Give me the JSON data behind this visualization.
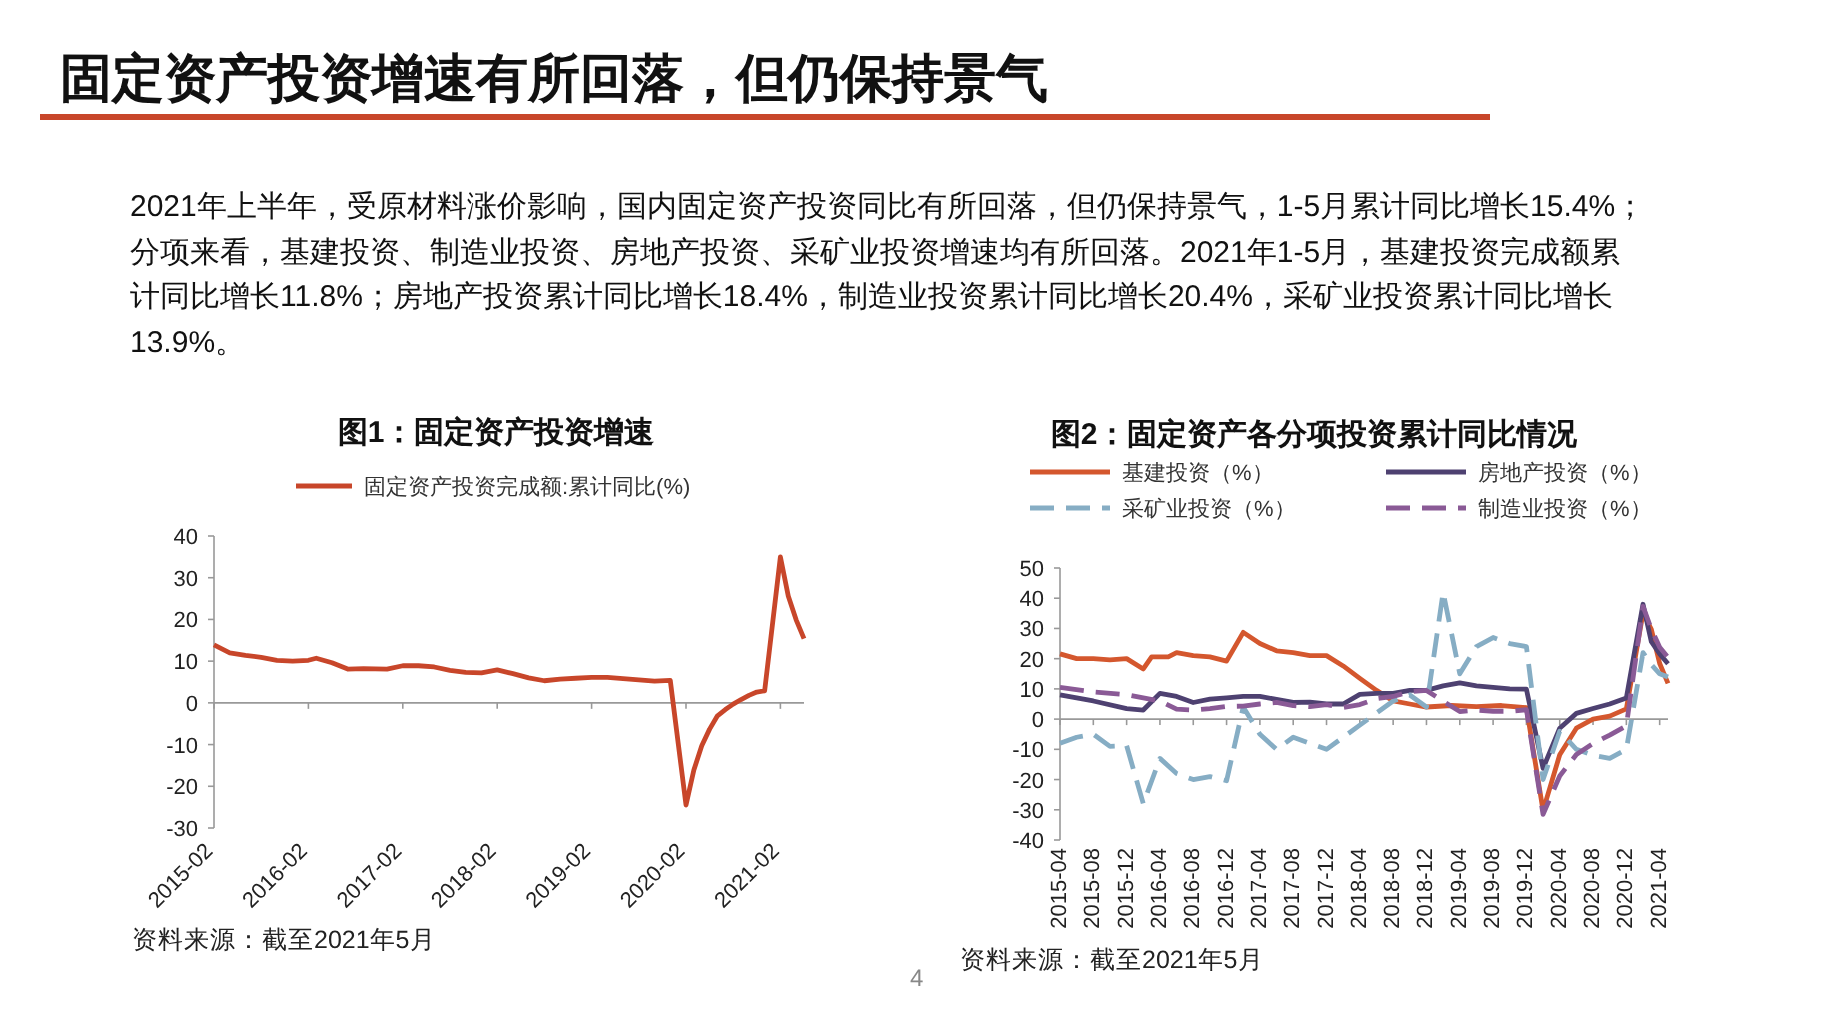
{
  "chart_data": [
    {
      "type": "other",
      "title": "固定资产投资增速有所回落，但仍保持景气",
      "annotations": [
        "2021年上半年，受原材料涨价影响，国内固定资产投资同比有所回落，但仍保持景气，1-5月累计同比增长15.4%；分项来看，基建投资、制造业投资、房地产投资、采矿业投资增速均有所回落。2021年1-5月，基建投资完成额累计同比增长11.8%；房地产投资累计同比增长18.4%，制造业投资累计同比增长20.4%，采矿业投资累计同比增长13.9%。",
        "4"
      ]
    },
    {
      "type": "line",
      "title": "图1：固定资产投资增速",
      "legend": "top",
      "xlim": [
        "2015-02",
        "2021-05"
      ],
      "xticks": [
        "2015-02",
        "2016-02",
        "2017-02",
        "2018-02",
        "2019-02",
        "2020-02",
        "2021-02"
      ],
      "ylim": [
        -30,
        40
      ],
      "yticks": [
        -30,
        -20,
        -10,
        0,
        10,
        20,
        30,
        40
      ],
      "annotations": [
        "资料来源：截至2021年5月"
      ],
      "series": [
        {
          "name": "固定资产投资完成额:累计同比(%)",
          "color": "#c8462a",
          "line_style": "solid",
          "x": [
            "2015-02",
            "2015-04",
            "2015-06",
            "2015-08",
            "2015-10",
            "2015-12",
            "2016-02",
            "2016-03",
            "2016-05",
            "2016-07",
            "2016-09",
            "2016-12",
            "2017-02",
            "2017-04",
            "2017-06",
            "2017-08",
            "2017-10",
            "2017-12",
            "2018-02",
            "2018-04",
            "2018-06",
            "2018-08",
            "2018-10",
            "2018-12",
            "2019-02",
            "2019-04",
            "2019-06",
            "2019-08",
            "2019-10",
            "2019-12",
            "2020-02",
            "2020-03",
            "2020-04",
            "2020-05",
            "2020-06",
            "2020-07",
            "2020-08",
            "2020-09",
            "2020-10",
            "2020-11",
            "2020-12",
            "2021-02",
            "2021-03",
            "2021-04",
            "2021-05"
          ],
          "values": [
            13.9,
            12,
            11.4,
            10.9,
            10.2,
            10,
            10.2,
            10.7,
            9.6,
            8.1,
            8.2,
            8.1,
            8.9,
            8.9,
            8.6,
            7.8,
            7.3,
            7.2,
            7.9,
            7,
            6,
            5.3,
            5.7,
            5.9,
            6.1,
            6.1,
            5.8,
            5.5,
            5.2,
            5.4,
            -24.5,
            -16.1,
            -10.3,
            -6.3,
            -3.1,
            -1.6,
            -0.3,
            0.8,
            1.8,
            2.6,
            2.9,
            35,
            25.6,
            19.9,
            15.4
          ]
        }
      ]
    },
    {
      "type": "line",
      "title": "图2：固定资产各分项投资累计同比情况",
      "legend": "top",
      "xlim": [
        "2015-04",
        "2021-05"
      ],
      "xticks": [
        "2015-04",
        "2015-08",
        "2015-12",
        "2016-04",
        "2016-08",
        "2016-12",
        "2017-04",
        "2017-08",
        "2017-12",
        "2018-04",
        "2018-08",
        "2018-12",
        "2019-04",
        "2019-08",
        "2019-12",
        "2020-04",
        "2020-08",
        "2020-12",
        "2021-04"
      ],
      "ylim": [
        -40,
        50
      ],
      "yticks": [
        -40,
        -30,
        -20,
        -10,
        0,
        10,
        20,
        30,
        40,
        50
      ],
      "annotations": [
        "资料来源：截至2021年5月"
      ],
      "series": [
        {
          "name": "基建投资（%）",
          "color": "#d4572e",
          "line_style": "solid",
          "x": [
            "2015-04",
            "2015-06",
            "2015-08",
            "2015-10",
            "2015-12",
            "2016-02",
            "2016-03",
            "2016-05",
            "2016-06",
            "2016-08",
            "2016-10",
            "2016-12",
            "2017-02",
            "2017-04",
            "2017-06",
            "2017-08",
            "2017-10",
            "2017-12",
            "2018-02",
            "2018-04",
            "2018-06",
            "2018-08",
            "2018-10",
            "2018-12",
            "2019-03",
            "2019-06",
            "2019-09",
            "2019-12",
            "2020-02",
            "2020-04",
            "2020-06",
            "2020-08",
            "2020-10",
            "2020-12",
            "2021-02",
            "2021-03",
            "2021-04",
            "2021-05"
          ],
          "values": [
            21.6,
            20,
            20,
            19.6,
            20,
            16.6,
            20.6,
            20.6,
            22,
            21,
            20.6,
            19.2,
            28.7,
            25,
            22.6,
            22,
            21,
            21,
            17.6,
            13.5,
            9.5,
            6,
            5,
            4,
            4.5,
            4.1,
            4.5,
            3.8,
            -30.3,
            -11.8,
            -3,
            0,
            1,
            3.4,
            35.2,
            29.7,
            18.4,
            11.8
          ]
        },
        {
          "name": "房地产投资（%）",
          "color": "#4e4171",
          "line_style": "solid",
          "x": [
            "2015-04",
            "2015-08",
            "2015-12",
            "2016-02",
            "2016-04",
            "2016-06",
            "2016-08",
            "2016-10",
            "2016-12",
            "2017-02",
            "2017-04",
            "2017-06",
            "2017-08",
            "2017-10",
            "2017-12",
            "2018-02",
            "2018-04",
            "2018-06",
            "2018-08",
            "2018-10",
            "2018-12",
            "2019-02",
            "2019-04",
            "2019-06",
            "2019-08",
            "2019-10",
            "2019-12",
            "2020-02",
            "2020-04",
            "2020-06",
            "2020-08",
            "2020-10",
            "2020-12",
            "2021-02",
            "2021-03",
            "2021-04",
            "2021-05"
          ],
          "values": [
            8,
            6,
            3.5,
            3,
            8.5,
            7.5,
            5.5,
            6.6,
            7,
            7.5,
            7.5,
            6.5,
            5.5,
            5.6,
            5,
            5,
            8.2,
            8.5,
            8.5,
            9.5,
            9.5,
            11,
            12,
            11,
            10.5,
            10,
            9.9,
            -16.3,
            -3,
            1.9,
            3.5,
            5,
            7,
            38,
            25.6,
            21.6,
            18.3
          ]
        },
        {
          "name": "采矿业投资（%）",
          "color": "#86adc4",
          "line_style": "dashed",
          "x": [
            "2015-04",
            "2015-06",
            "2015-08",
            "2015-10",
            "2015-12",
            "2016-02",
            "2016-04",
            "2016-06",
            "2016-08",
            "2016-10",
            "2016-12",
            "2017-02",
            "2017-04",
            "2017-06",
            "2017-08",
            "2017-10",
            "2017-12",
            "2018-02",
            "2018-04",
            "2018-06",
            "2018-08",
            "2018-10",
            "2018-12",
            "2019-02",
            "2019-04",
            "2019-06",
            "2019-08",
            "2019-10",
            "2019-12",
            "2020-02",
            "2020-04",
            "2020-06",
            "2020-08",
            "2020-10",
            "2020-12",
            "2021-02",
            "2021-03",
            "2021-04",
            "2021-05"
          ],
          "values": [
            -8,
            -6,
            -5,
            -9,
            -8.8,
            -28,
            -13,
            -18,
            -20,
            -19,
            -20.4,
            4,
            -5,
            -10,
            -6,
            -8,
            -10,
            -6,
            -2,
            2,
            6,
            8,
            4,
            42,
            15,
            24,
            27,
            25,
            24,
            -20,
            -4,
            -10,
            -12,
            -13,
            -10,
            22,
            18,
            15,
            13.9
          ]
        },
        {
          "name": "制造业投资（%）",
          "color": "#8a5a96",
          "line_style": "dashed",
          "x": [
            "2015-04",
            "2015-08",
            "2015-12",
            "2016-04",
            "2016-06",
            "2016-08",
            "2016-10",
            "2016-12",
            "2017-02",
            "2017-04",
            "2017-06",
            "2017-08",
            "2017-10",
            "2017-12",
            "2018-02",
            "2018-04",
            "2018-06",
            "2018-08",
            "2018-10",
            "2018-12",
            "2019-02",
            "2019-04",
            "2019-06",
            "2019-08",
            "2019-10",
            "2019-12",
            "2020-02",
            "2020-04",
            "2020-06",
            "2020-08",
            "2020-10",
            "2020-12",
            "2021-02",
            "2021-03",
            "2021-04",
            "2021-05"
          ],
          "values": [
            10.5,
            9,
            8.1,
            6,
            3.3,
            3,
            3.5,
            4.2,
            4.3,
            5,
            5.5,
            4.5,
            4.1,
            4.8,
            3.8,
            4.8,
            6.8,
            7.5,
            9.1,
            9.5,
            5.9,
            2.5,
            3,
            2.6,
            2.6,
            3.1,
            -31.5,
            -18.8,
            -11.7,
            -8.1,
            -5.3,
            -2.2,
            37.3,
            29.8,
            23.8,
            20.4
          ]
        }
      ]
    }
  ]
}
